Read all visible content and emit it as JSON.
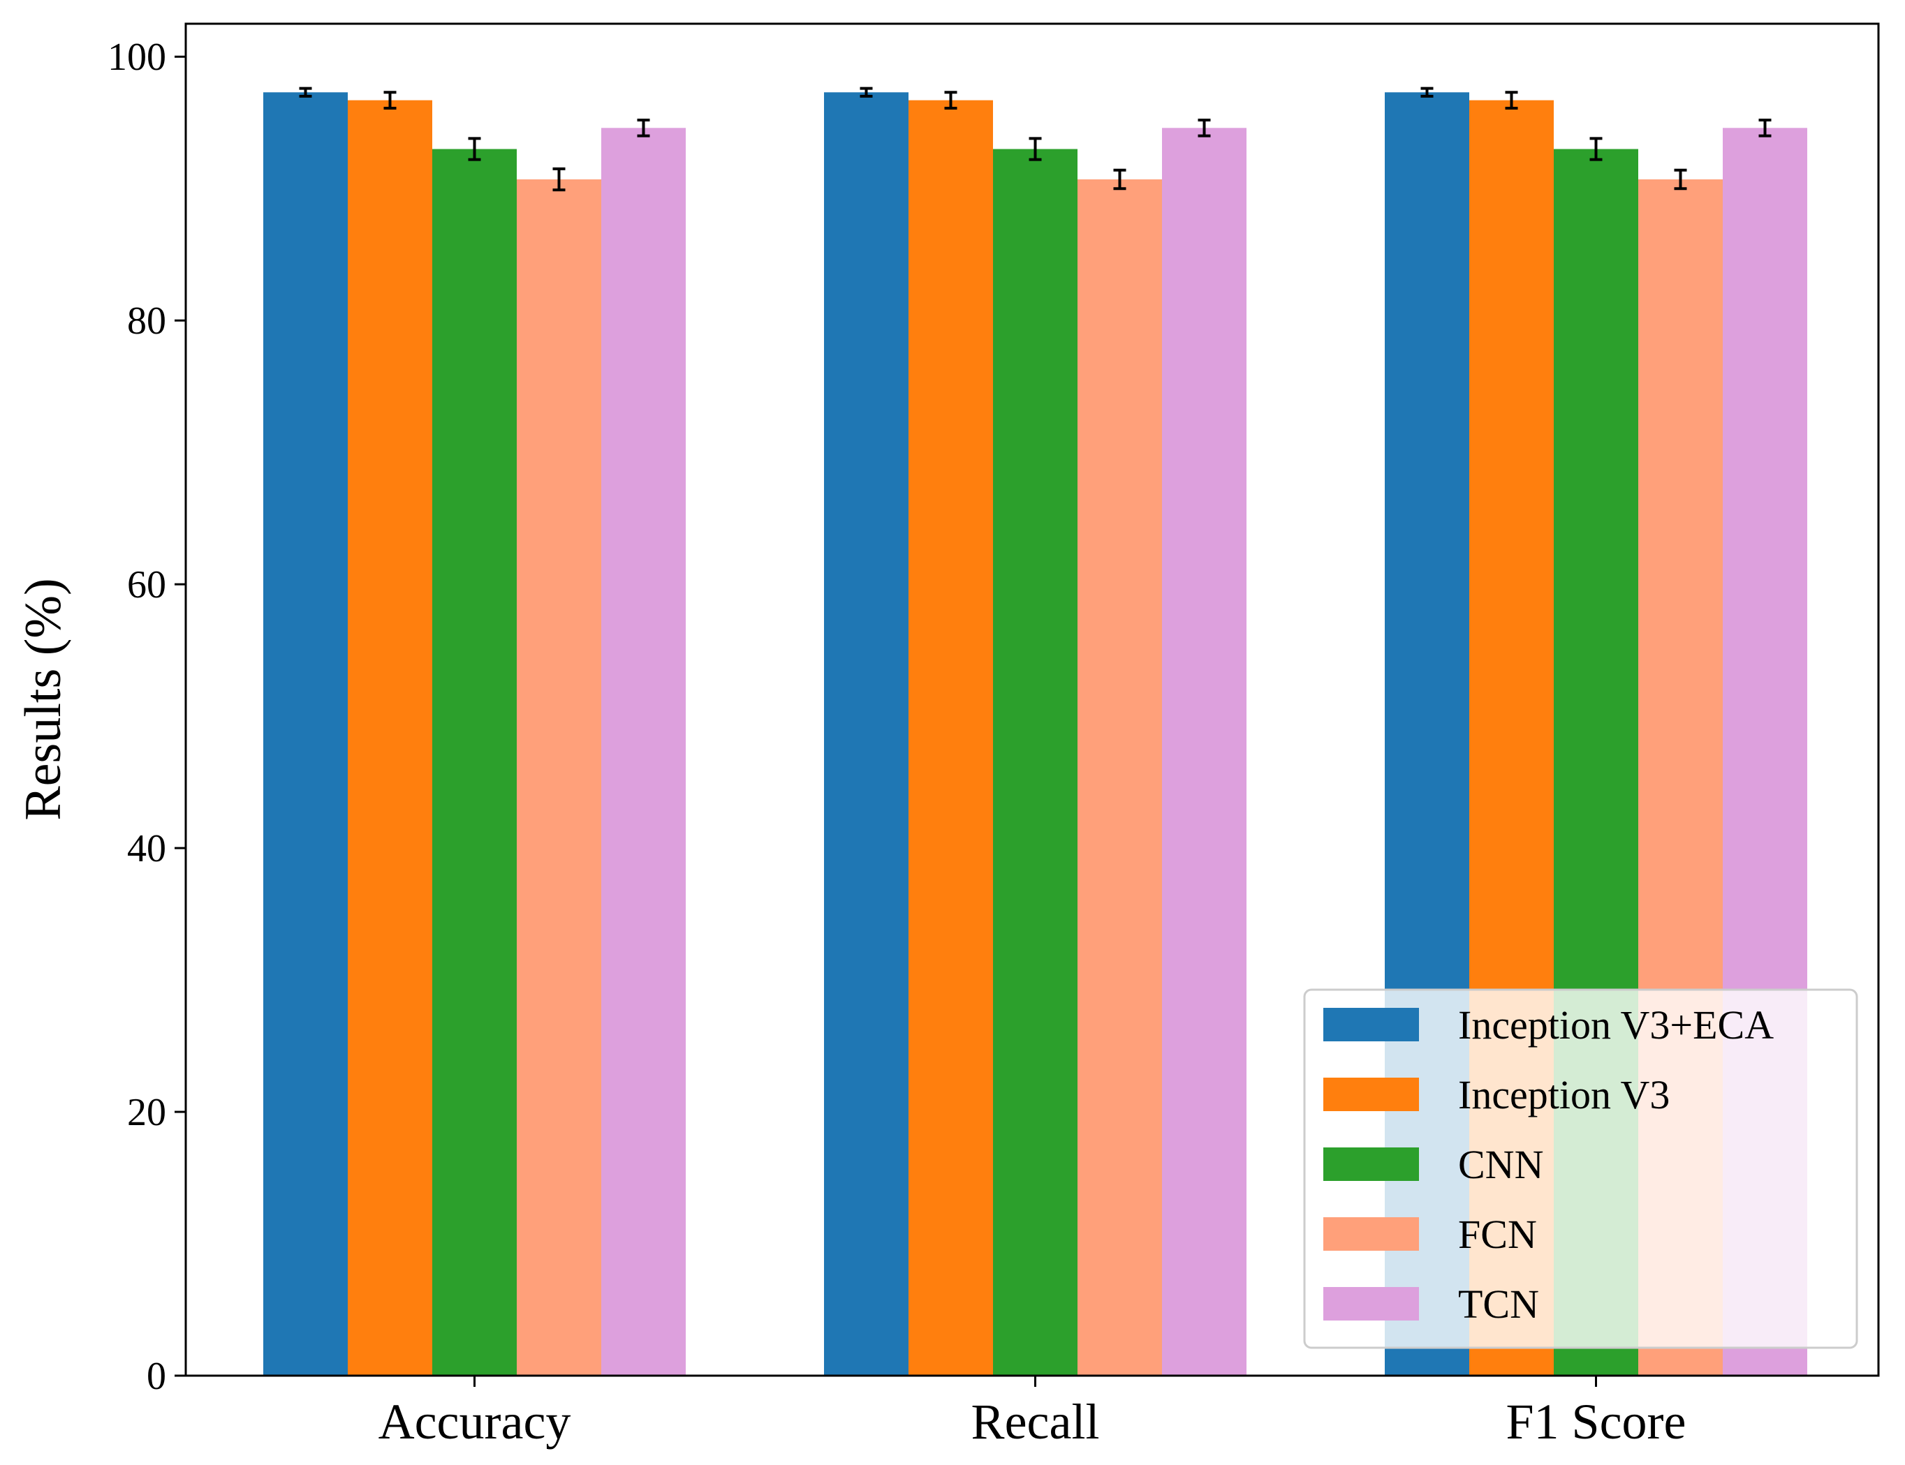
{
  "chart_data": {
    "type": "bar",
    "title": "",
    "xlabel": "",
    "ylabel": "Results (%)",
    "ylim": [
      0,
      102.5
    ],
    "yticks": [
      0,
      20,
      40,
      60,
      80,
      100
    ],
    "grid": false,
    "legend_position": "bottom-right",
    "categories": [
      "Accuracy",
      "Recall",
      "F1 Score"
    ],
    "series": [
      {
        "name": "Inception V3+ECA",
        "color": "#1f77b4",
        "values": [
          97.3,
          97.3,
          97.3
        ],
        "errors": [
          0.3,
          0.3,
          0.3
        ]
      },
      {
        "name": "Inception V3",
        "color": "#ff7f0e",
        "values": [
          96.7,
          96.7,
          96.7
        ],
        "errors": [
          0.6,
          0.6,
          0.6
        ]
      },
      {
        "name": "CNN",
        "color": "#2ca02c",
        "values": [
          93.0,
          93.0,
          93.0
        ],
        "errors": [
          0.8,
          0.8,
          0.8
        ]
      },
      {
        "name": "FCN",
        "color": "#ffa07a",
        "values": [
          90.7,
          90.7,
          90.7
        ],
        "errors": [
          0.8,
          0.7,
          0.7
        ]
      },
      {
        "name": "TCN",
        "color": "#dda0dd",
        "values": [
          94.6,
          94.6,
          94.6
        ],
        "errors": [
          0.6,
          0.6,
          0.6
        ]
      }
    ]
  }
}
